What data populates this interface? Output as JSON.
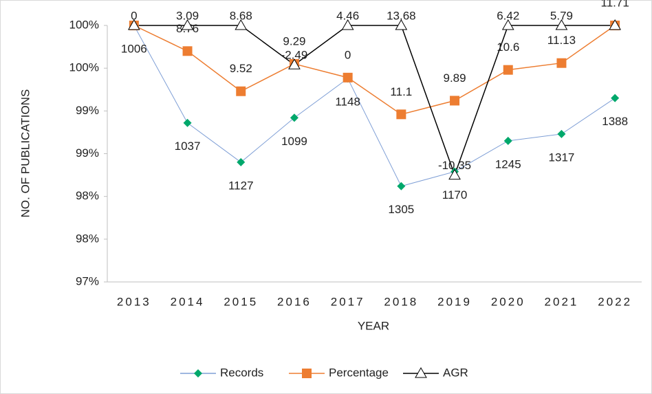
{
  "chart_data": {
    "type": "line",
    "x_label": "YEAR",
    "y_label": "NO. OF PUBLICATIONS",
    "categories": [
      "2013",
      "2014",
      "2015",
      "2016",
      "2017",
      "2018",
      "2019",
      "2020",
      "2021",
      "2022"
    ],
    "ylim": [
      97,
      100
    ],
    "yticks": [
      {
        "value": 97,
        "label": "97%"
      },
      {
        "value": 97.5,
        "label": "98%"
      },
      {
        "value": 98,
        "label": "98%"
      },
      {
        "value": 98.5,
        "label": "99%"
      },
      {
        "value": 99,
        "label": "99%"
      },
      {
        "value": 99.5,
        "label": "100%"
      },
      {
        "value": 100,
        "label": "100%"
      }
    ],
    "legend": "bottom",
    "series": [
      {
        "name": "Records",
        "color": "#7f9fd6",
        "marker_color": "#00a86b",
        "marker": "diamond",
        "values": [
          100,
          98.86,
          98.4,
          98.92,
          99.38,
          98.12,
          98.29,
          98.65,
          98.73,
          99.15
        ],
        "labels": [
          "1006",
          "1037",
          "1127",
          "1099",
          "1148",
          "1305",
          "1170",
          "1245",
          "1317",
          "1388"
        ]
      },
      {
        "name": "Percentage",
        "color": "#ed7d31",
        "marker_color": "#ed7d31",
        "marker": "square",
        "values": [
          100,
          99.7,
          99.23,
          99.55,
          99.39,
          98.96,
          99.12,
          99.48,
          99.56,
          100
        ],
        "labels": [
          null,
          "8.76",
          "9.52",
          "9.29",
          "0",
          "11.1",
          "9.89",
          "10.6",
          "11.13",
          "11.71"
        ]
      },
      {
        "name": "AGR",
        "color": "#000000",
        "marker_color": "#ffffff",
        "marker": "triangle",
        "values": [
          100,
          100,
          100,
          99.54,
          100,
          100,
          98.25,
          100,
          100,
          100
        ],
        "labels": [
          "0",
          "3.09",
          "8.68",
          "-2.49",
          "4.46",
          "13.68",
          "-10.35",
          "6.42",
          "5.79",
          null
        ]
      }
    ]
  }
}
